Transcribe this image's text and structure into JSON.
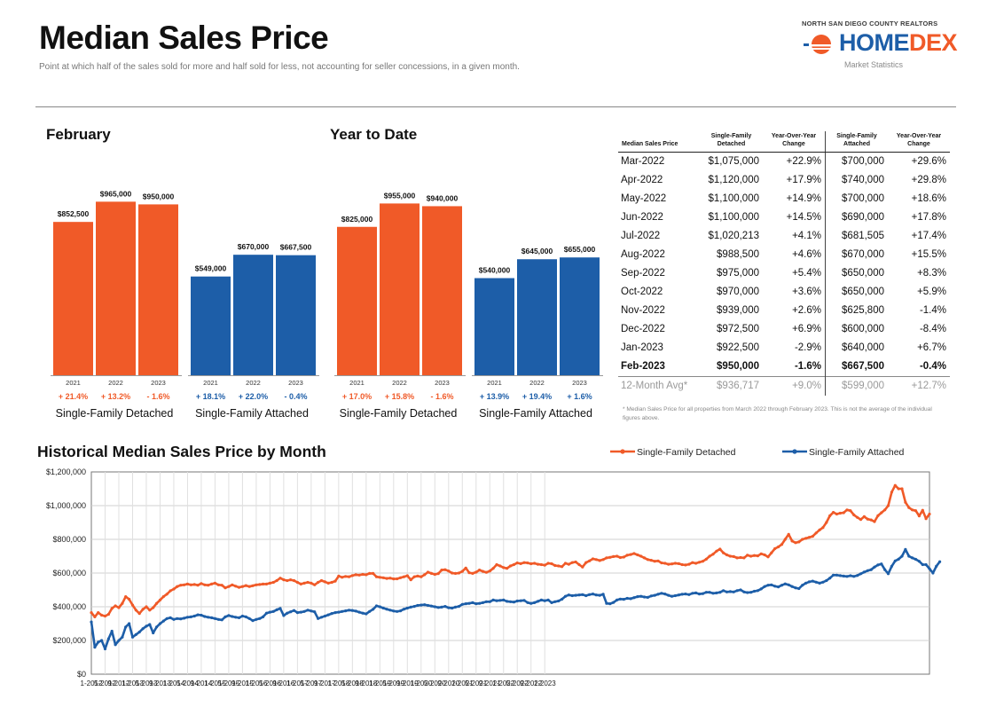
{
  "header": {
    "title": "Median Sales Price",
    "subtitle": "Point at which half of the sales sold for more and half sold for less, not accounting for seller concessions, in a given month.",
    "logo_top": "NORTH SAN DIEGO COUNTY REALTORS",
    "logo_home": "HOME",
    "logo_dex": "DEX",
    "logo_sub": "Market Statistics"
  },
  "colors": {
    "detached": "#f05a28",
    "attached": "#1d5ea8"
  },
  "panels": [
    {
      "title": "February"
    },
    {
      "title": "Year to Date"
    }
  ],
  "table": {
    "headers": [
      "Median Sales Price",
      "Single-Family Detached",
      "Year-Over-Year Change",
      "Single-Family Attached",
      "Year-Over-Year Change"
    ],
    "rows": [
      {
        "month": "Mar-2022",
        "det": "$1,075,000",
        "det_yoy": "+22.9%",
        "att": "$700,000",
        "att_yoy": "+29.6%"
      },
      {
        "month": "Apr-2022",
        "det": "$1,120,000",
        "det_yoy": "+17.9%",
        "att": "$740,000",
        "att_yoy": "+29.8%"
      },
      {
        "month": "May-2022",
        "det": "$1,100,000",
        "det_yoy": "+14.9%",
        "att": "$700,000",
        "att_yoy": "+18.6%"
      },
      {
        "month": "Jun-2022",
        "det": "$1,100,000",
        "det_yoy": "+14.5%",
        "att": "$690,000",
        "att_yoy": "+17.8%"
      },
      {
        "month": "Jul-2022",
        "det": "$1,020,213",
        "det_yoy": "+4.1%",
        "att": "$681,505",
        "att_yoy": "+17.4%"
      },
      {
        "month": "Aug-2022",
        "det": "$988,500",
        "det_yoy": "+4.6%",
        "att": "$670,000",
        "att_yoy": "+15.5%"
      },
      {
        "month": "Sep-2022",
        "det": "$975,000",
        "det_yoy": "+5.4%",
        "att": "$650,000",
        "att_yoy": "+8.3%"
      },
      {
        "month": "Oct-2022",
        "det": "$970,000",
        "det_yoy": "+3.6%",
        "att": "$650,000",
        "att_yoy": "+5.9%"
      },
      {
        "month": "Nov-2022",
        "det": "$939,000",
        "det_yoy": "+2.6%",
        "att": "$625,800",
        "att_yoy": "-1.4%"
      },
      {
        "month": "Dec-2022",
        "det": "$972,500",
        "det_yoy": "+6.9%",
        "att": "$600,000",
        "att_yoy": "-8.4%"
      },
      {
        "month": "Jan-2023",
        "det": "$922,500",
        "det_yoy": "-2.9%",
        "att": "$640,000",
        "att_yoy": "+6.7%"
      },
      {
        "month": "Feb-2023",
        "det": "$950,000",
        "det_yoy": "-1.6%",
        "att": "$667,500",
        "att_yoy": "-0.4%",
        "bold": true
      }
    ],
    "avg": {
      "month": "12-Month Avg*",
      "det": "$936,717",
      "det_yoy": "+9.0%",
      "att": "$599,000",
      "att_yoy": "+12.7%"
    },
    "footnote": "* Median Sales Price for all properties from March 2022 through February 2023. This is not the average of the individual figures above."
  },
  "historical": {
    "title": "Historical Median Sales Price by Month"
  },
  "chart_data": [
    {
      "type": "bar",
      "title": "February",
      "groups": [
        {
          "name": "Single-Family Detached",
          "categories": [
            "2021",
            "2022",
            "2023"
          ],
          "values": [
            852500,
            965000,
            950000
          ],
          "labels": [
            "$852,500",
            "$965,000",
            "$950,000"
          ],
          "changes": [
            "+ 21.4%",
            "+ 13.2%",
            "- 1.6%"
          ]
        },
        {
          "name": "Single-Family Attached",
          "categories": [
            "2021",
            "2022",
            "2023"
          ],
          "values": [
            549000,
            670000,
            667500
          ],
          "labels": [
            "$549,000",
            "$670,000",
            "$667,500"
          ],
          "changes": [
            "+ 18.1%",
            "+ 22.0%",
            "- 0.4%"
          ]
        }
      ]
    },
    {
      "type": "bar",
      "title": "Year to Date",
      "groups": [
        {
          "name": "Single-Family Detached",
          "categories": [
            "2021",
            "2022",
            "2023"
          ],
          "values": [
            825000,
            955000,
            940000
          ],
          "labels": [
            "$825,000",
            "$955,000",
            "$940,000"
          ],
          "changes": [
            "+ 17.0%",
            "+ 15.8%",
            "- 1.6%"
          ]
        },
        {
          "name": "Single-Family Attached",
          "categories": [
            "2021",
            "2022",
            "2023"
          ],
          "values": [
            540000,
            645000,
            655000
          ],
          "labels": [
            "$540,000",
            "$645,000",
            "$655,000"
          ],
          "changes": [
            "+ 13.9%",
            "+ 19.4%",
            "+ 1.6%"
          ]
        }
      ]
    },
    {
      "type": "line",
      "title": "Historical Median Sales Price by Month",
      "ylim": [
        0,
        1200000
      ],
      "yticks": [
        "$0",
        "$200,000",
        "$400,000",
        "$600,000",
        "$800,000",
        "$1,000,000",
        "$1,200,000"
      ],
      "xtick_labels": [
        "1-2012",
        "5-2012",
        "9-2012",
        "1-2013",
        "5-2013",
        "9-2013",
        "1-2014",
        "5-2014",
        "9-2014",
        "1-2015",
        "5-2015",
        "9-2015",
        "1-2016",
        "5-2016",
        "9-2016",
        "1-2017",
        "5-2017",
        "9-2017",
        "1-2018",
        "5-2018",
        "9-2018",
        "1-2019",
        "5-2019",
        "9-2019",
        "1-2020",
        "5-2020",
        "9-2020",
        "1-2021",
        "5-2021",
        "9-2021",
        "1-2022",
        "5-2022",
        "9-2022",
        "1-2023"
      ],
      "x_start": "2012-01",
      "x_end": "2023-02",
      "legend_position": "top-right",
      "grid": true,
      "series": [
        {
          "name": "Single-Family Detached",
          "values": [
            365000,
            340000,
            365000,
            350000,
            345000,
            355000,
            390000,
            405000,
            395000,
            420000,
            460000,
            445000,
            410000,
            380000,
            360000,
            385000,
            400000,
            380000,
            395000,
            420000,
            440000,
            460000,
            475000,
            495000,
            505000,
            520000,
            528000,
            530000,
            535000,
            530000,
            532000,
            528000,
            538000,
            530000,
            528000,
            535000,
            540000,
            530000,
            528000,
            512000,
            520000,
            530000,
            522000,
            515000,
            520000,
            526000,
            520000,
            525000,
            530000,
            532000,
            535000,
            535000,
            540000,
            545000,
            555000,
            570000,
            560000,
            555000,
            560000,
            555000,
            545000,
            535000,
            540000,
            545000,
            540000,
            530000,
            545000,
            555000,
            548000,
            540000,
            545000,
            552000,
            582000,
            575000,
            580000,
            578000,
            585000,
            590000,
            588000,
            592000,
            590000,
            598000,
            598000,
            578000,
            575000,
            572000,
            568000,
            570000,
            565000,
            566000,
            572000,
            578000,
            584000,
            560000,
            578000,
            582000,
            578000,
            590000,
            605000,
            598000,
            592000,
            597000,
            618000,
            620000,
            612000,
            600000,
            598000,
            600000,
            610000,
            630000,
            602000,
            598000,
            605000,
            618000,
            610000,
            604000,
            612000,
            628000,
            650000,
            642000,
            632000,
            628000,
            642000,
            650000,
            660000,
            656000,
            662000,
            660000,
            655000,
            658000,
            652000,
            650000,
            647000,
            658000,
            655000,
            645000,
            642000,
            638000,
            658000,
            652000,
            662000,
            666000,
            650000,
            636000,
            662000,
            672000,
            684000,
            680000,
            674000,
            680000,
            690000,
            693000,
            698000,
            700000,
            692000,
            695000,
            706000,
            710000,
            716000,
            708000,
            700000,
            690000,
            680000,
            676000,
            670000,
            672000,
            660000,
            658000,
            652000,
            654000,
            658000,
            656000,
            650000,
            648000,
            652000,
            662000,
            658000,
            664000,
            670000,
            682000,
            700000,
            712000,
            730000,
            742000,
            720000,
            708000,
            700000,
            698000,
            690000,
            692000,
            690000,
            706000,
            700000,
            704000,
            702000,
            714000,
            708000,
            696000,
            720000,
            745000,
            755000,
            770000,
            800000,
            830000,
            790000,
            780000,
            785000,
            800000,
            806000,
            812000,
            818000,
            838000,
            856000,
            870000,
            900000,
            940000,
            960000,
            950000,
            955000,
            958000,
            975000,
            970000,
            945000,
            930000,
            918000,
            935000,
            920000,
            915000,
            905000,
            940000,
            958000,
            975000,
            1000000,
            1080000,
            1120000,
            1100000,
            1100000,
            1020213,
            988500,
            975000,
            970000,
            939000,
            972500,
            922500,
            950000
          ]
        },
        {
          "name": "Single-Family Attached",
          "values": [
            310000,
            160000,
            190000,
            200000,
            150000,
            210000,
            255000,
            175000,
            200000,
            220000,
            280000,
            300000,
            220000,
            235000,
            250000,
            270000,
            285000,
            295000,
            245000,
            280000,
            300000,
            315000,
            330000,
            335000,
            325000,
            330000,
            328000,
            332000,
            338000,
            340000,
            345000,
            352000,
            350000,
            342000,
            338000,
            335000,
            330000,
            325000,
            322000,
            340000,
            348000,
            342000,
            338000,
            335000,
            345000,
            340000,
            330000,
            318000,
            325000,
            330000,
            340000,
            362000,
            368000,
            372000,
            382000,
            390000,
            348000,
            362000,
            370000,
            378000,
            365000,
            368000,
            372000,
            380000,
            375000,
            370000,
            330000,
            338000,
            345000,
            352000,
            360000,
            365000,
            368000,
            372000,
            376000,
            380000,
            378000,
            374000,
            368000,
            362000,
            358000,
            372000,
            385000,
            405000,
            400000,
            392000,
            386000,
            380000,
            375000,
            372000,
            376000,
            386000,
            392000,
            398000,
            402000,
            408000,
            410000,
            412000,
            408000,
            404000,
            400000,
            396000,
            398000,
            402000,
            394000,
            392000,
            398000,
            402000,
            414000,
            418000,
            420000,
            424000,
            418000,
            420000,
            424000,
            430000,
            430000,
            440000,
            436000,
            438000,
            440000,
            432000,
            430000,
            428000,
            434000,
            436000,
            438000,
            425000,
            420000,
            424000,
            432000,
            440000,
            436000,
            440000,
            424000,
            430000,
            434000,
            445000,
            462000,
            470000,
            466000,
            468000,
            470000,
            472000,
            466000,
            472000,
            476000,
            470000,
            468000,
            474000,
            420000,
            418000,
            426000,
            440000,
            446000,
            444000,
            450000,
            448000,
            454000,
            460000,
            462000,
            458000,
            456000,
            464000,
            468000,
            474000,
            480000,
            476000,
            468000,
            462000,
            466000,
            470000,
            474000,
            476000,
            472000,
            480000,
            482000,
            476000,
            478000,
            486000,
            486000,
            480000,
            482000,
            486000,
            496000,
            488000,
            490000,
            488000,
            496000,
            500000,
            488000,
            484000,
            486000,
            492000,
            496000,
            506000,
            520000,
            528000,
            530000,
            522000,
            518000,
            528000,
            536000,
            530000,
            520000,
            512000,
            508000,
            528000,
            540000,
            548000,
            552000,
            546000,
            540000,
            546000,
            555000,
            570000,
            588000,
            588000,
            585000,
            582000,
            580000,
            584000,
            580000,
            586000,
            596000,
            606000,
            614000,
            620000,
            636000,
            648000,
            654000,
            620000,
            596000,
            640000,
            672000,
            682000,
            700000,
            740000,
            700000,
            690000,
            681505,
            670000,
            650000,
            650000,
            625800,
            600000,
            640000,
            667500
          ]
        }
      ]
    }
  ]
}
